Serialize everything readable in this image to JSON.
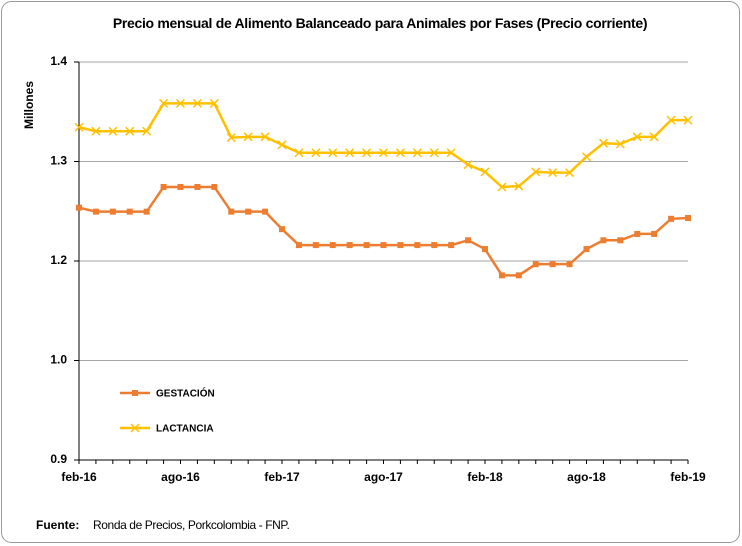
{
  "chart_data": {
    "type": "line",
    "title": "Precio mensual de Alimento Balanceado para Animales por Fases (Precio corriente)",
    "y_label": "Millones",
    "categories": [
      "feb-16",
      null,
      null,
      null,
      null,
      null,
      "ago-16",
      null,
      null,
      null,
      null,
      null,
      "feb-17",
      null,
      null,
      null,
      null,
      null,
      "ago-17",
      null,
      null,
      null,
      null,
      null,
      "feb-18",
      null,
      null,
      null,
      null,
      null,
      "ago-18",
      null,
      null,
      null,
      null,
      null,
      "feb-19"
    ],
    "ylim": [
      0.9,
      1.4
    ],
    "yticks": [
      0.9,
      {
        "value": 1.025,
        "label": "1.0"
      },
      {
        "value": 1.15,
        "label": "1.2"
      },
      {
        "value": 1.275,
        "label": "1.3"
      },
      1.4
    ],
    "grid": true,
    "legend": "bottom-left",
    "series": [
      {
        "name": "GESTACIÓN",
        "color": "#ed7d31",
        "marker": "square",
        "values": [
          1.217,
          1.212,
          1.212,
          1.212,
          1.212,
          1.243,
          1.243,
          1.243,
          1.243,
          1.212,
          1.212,
          1.212,
          1.19,
          1.17,
          1.17,
          1.17,
          1.17,
          1.17,
          1.17,
          1.17,
          1.17,
          1.17,
          1.17,
          1.176,
          1.165,
          1.132,
          1.132,
          1.146,
          1.146,
          1.146,
          1.165,
          1.176,
          1.176,
          1.184,
          1.184,
          1.203,
          1.204
        ]
      },
      {
        "name": "LACTANCIA",
        "color": "#ffc000",
        "marker": "x",
        "values": [
          1.318,
          1.313,
          1.313,
          1.313,
          1.313,
          1.348,
          1.348,
          1.348,
          1.348,
          1.305,
          1.306,
          1.306,
          1.296,
          1.286,
          1.286,
          1.286,
          1.286,
          1.286,
          1.286,
          1.286,
          1.286,
          1.286,
          1.286,
          1.271,
          1.262,
          1.243,
          1.244,
          1.262,
          1.261,
          1.261,
          1.281,
          1.298,
          1.297,
          1.306,
          1.306,
          1.327,
          1.327
        ]
      }
    ],
    "source": {
      "label": "Fuente:",
      "text": "Ronda de Precios, Porkcolombia  - FNP."
    }
  }
}
